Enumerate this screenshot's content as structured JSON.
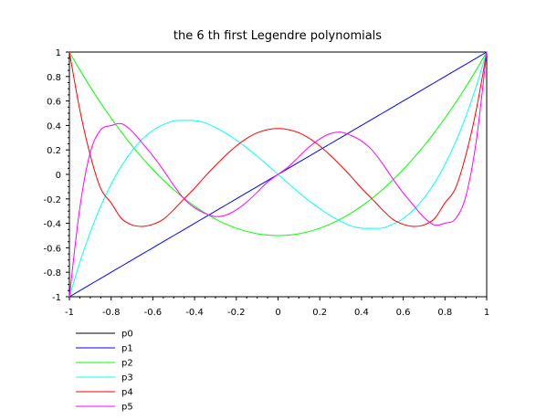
{
  "chart_data": {
    "type": "line",
    "title": "the 6 th first Legendre polynomials",
    "xlabel": "",
    "ylabel": "",
    "xlim": [
      -1,
      1
    ],
    "ylim": [
      -1,
      1
    ],
    "grid": false,
    "legend_placement": "bottom-left",
    "x_ticks": [
      "-1",
      "-0.8",
      "-0.6",
      "-0.4",
      "-0.2",
      "0",
      "0.2",
      "0.4",
      "0.6",
      "0.8",
      "1"
    ],
    "y_ticks": [
      "1",
      "0.8",
      "0.6",
      "0.4",
      "0.2",
      "0",
      "-0.2",
      "-0.4",
      "-0.6",
      "-0.8",
      "-1"
    ],
    "x": [
      -1.0,
      -0.95,
      -0.9,
      -0.85,
      -0.8,
      -0.75,
      -0.7,
      -0.65,
      -0.6,
      -0.55,
      -0.5,
      -0.45,
      -0.4,
      -0.35,
      -0.3,
      -0.25,
      -0.2,
      -0.15,
      -0.1,
      -0.05,
      0.0,
      0.05,
      0.1,
      0.15,
      0.2,
      0.25,
      0.3,
      0.35,
      0.4,
      0.45,
      0.5,
      0.55,
      0.6,
      0.65,
      0.7,
      0.75,
      0.8,
      0.85,
      0.9,
      0.95,
      1.0
    ],
    "series": [
      {
        "name": "p0",
        "color": "#000000",
        "values": [
          1,
          1,
          1,
          1,
          1,
          1,
          1,
          1,
          1,
          1,
          1,
          1,
          1,
          1,
          1,
          1,
          1,
          1,
          1,
          1,
          1,
          1,
          1,
          1,
          1,
          1,
          1,
          1,
          1,
          1,
          1,
          1,
          1,
          1,
          1,
          1,
          1,
          1,
          1,
          1,
          1
        ]
      },
      {
        "name": "p1",
        "color": "#0000ff",
        "values": [
          -1.0,
          -0.95,
          -0.9,
          -0.85,
          -0.8,
          -0.75,
          -0.7,
          -0.65,
          -0.6,
          -0.55,
          -0.5,
          -0.45,
          -0.4,
          -0.35,
          -0.3,
          -0.25,
          -0.2,
          -0.15,
          -0.1,
          -0.05,
          0.0,
          0.05,
          0.1,
          0.15,
          0.2,
          0.25,
          0.3,
          0.35,
          0.4,
          0.45,
          0.5,
          0.55,
          0.6,
          0.65,
          0.7,
          0.75,
          0.8,
          0.85,
          0.9,
          0.95,
          1.0
        ]
      },
      {
        "name": "p2",
        "color": "#00ff00",
        "values": [
          1.0,
          0.854,
          0.715,
          0.584,
          0.46,
          0.344,
          0.235,
          0.134,
          0.04,
          -0.046,
          -0.125,
          -0.196,
          -0.26,
          -0.316,
          -0.365,
          -0.406,
          -0.44,
          -0.466,
          -0.485,
          -0.496,
          -0.5,
          -0.496,
          -0.485,
          -0.466,
          -0.44,
          -0.406,
          -0.365,
          -0.316,
          -0.26,
          -0.196,
          -0.125,
          -0.046,
          0.04,
          0.134,
          0.235,
          0.344,
          0.46,
          0.584,
          0.715,
          0.854,
          1.0
        ]
      },
      {
        "name": "p3",
        "color": "#00ffff",
        "values": [
          -1.0,
          -0.719,
          -0.473,
          -0.26,
          -0.08,
          0.07,
          0.193,
          0.289,
          0.36,
          0.407,
          0.438,
          0.441,
          0.44,
          0.422,
          0.383,
          0.336,
          0.28,
          0.217,
          0.148,
          0.075,
          0.0,
          -0.075,
          -0.148,
          -0.217,
          -0.28,
          -0.336,
          -0.383,
          -0.422,
          -0.44,
          -0.441,
          -0.438,
          -0.407,
          -0.36,
          -0.289,
          -0.193,
          -0.07,
          0.08,
          0.26,
          0.473,
          0.719,
          1.0
        ]
      },
      {
        "name": "p4",
        "color": "#ff0000",
        "values": [
          1.0,
          0.527,
          0.157,
          -0.115,
          -0.233,
          -0.361,
          -0.413,
          -0.425,
          -0.408,
          -0.367,
          -0.289,
          -0.199,
          -0.113,
          -0.017,
          0.073,
          0.157,
          0.232,
          0.294,
          0.34,
          0.366,
          0.375,
          0.366,
          0.34,
          0.294,
          0.232,
          0.157,
          0.073,
          -0.017,
          -0.113,
          -0.199,
          -0.289,
          -0.367,
          -0.408,
          -0.425,
          -0.413,
          -0.361,
          -0.233,
          -0.115,
          0.157,
          0.527,
          1.0
        ]
      },
      {
        "name": "p5",
        "color": "#ff00ff",
        "values": [
          -1.0,
          -0.272,
          0.179,
          0.364,
          0.399,
          0.414,
          0.353,
          0.254,
          0.152,
          0.036,
          -0.09,
          -0.2,
          -0.273,
          -0.318,
          -0.345,
          -0.333,
          -0.29,
          -0.226,
          -0.146,
          -0.062,
          0.0,
          0.062,
          0.146,
          0.226,
          0.29,
          0.333,
          0.345,
          0.318,
          0.273,
          0.2,
          0.09,
          -0.036,
          -0.152,
          -0.254,
          -0.353,
          -0.414,
          -0.399,
          -0.364,
          -0.179,
          0.272,
          1.0
        ]
      }
    ]
  }
}
